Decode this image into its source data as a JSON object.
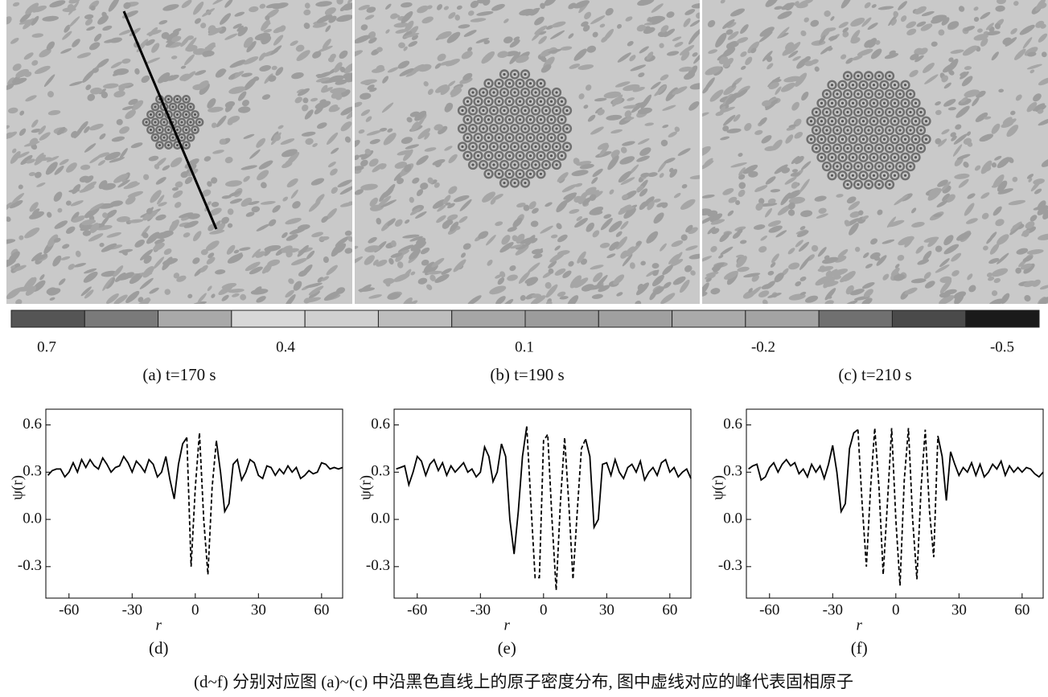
{
  "panels": [
    {
      "caption": "(a) t=170 s"
    },
    {
      "caption": "(b) t=190 s"
    },
    {
      "caption": "(c) t=210 s"
    }
  ],
  "colorbar": {
    "colors": [
      "#555555",
      "#7a7a7a",
      "#a9a9a9",
      "#d8d8d8",
      "#d0d0d0",
      "#bdbdbd",
      "#a6a6a6",
      "#9c9c9c",
      "#a0a0a0",
      "#aaaaaa",
      "#a3a3a3",
      "#707070",
      "#4a4a4a",
      "#1a1a1a"
    ],
    "ticks": [
      0.7,
      0.4,
      0.1,
      -0.2,
      -0.5
    ]
  },
  "chart_data": [
    {
      "type": "line",
      "caption": "(d)",
      "xlabel": "r",
      "ylabel": "ψ(r)",
      "xlim": [
        -71,
        70
      ],
      "ylim": [
        -0.5,
        0.7
      ],
      "xticks": [
        -60,
        -30,
        0,
        30,
        60
      ],
      "yticks": [
        0.6,
        0.3,
        {
          "value": 0,
          "label": "0.0"
        },
        -0.3
      ],
      "x": [
        -70,
        -68,
        -66,
        -64,
        -62,
        -60,
        -58,
        -56,
        -54,
        -52,
        -50,
        -48,
        -46,
        -44,
        -42,
        -40,
        -38,
        -36,
        -34,
        -32,
        -30,
        -28,
        -26,
        -24,
        -22,
        -20,
        -18,
        -16,
        -14,
        -12,
        -10,
        -8,
        -6,
        -4,
        -2,
        0,
        2,
        4,
        6,
        8,
        10,
        12,
        14,
        16,
        18,
        20,
        22,
        24,
        26,
        28,
        30,
        32,
        34,
        36,
        38,
        40,
        42,
        44,
        46,
        48,
        50,
        52,
        54,
        56,
        58,
        60,
        62,
        64,
        66,
        68,
        70
      ],
      "series": [
        {
          "style": "solid",
          "color": "#000000",
          "values": [
            0.28,
            0.31,
            0.32,
            0.32,
            0.27,
            0.3,
            0.36,
            0.3,
            0.38,
            0.33,
            0.38,
            0.34,
            0.32,
            0.39,
            0.35,
            0.3,
            0.33,
            0.34,
            0.4,
            0.36,
            0.3,
            0.37,
            0.34,
            0.3,
            0.38,
            0.35,
            0.27,
            0.3,
            0.4,
            0.25,
            0.13,
            0.35,
            0.48,
            0.52,
            null,
            null,
            null,
            null,
            null,
            null,
            0.5,
            0.3,
            0.05,
            0.1,
            0.35,
            0.38,
            0.25,
            0.3,
            0.38,
            0.36,
            0.28,
            0.26,
            0.34,
            0.33,
            0.28,
            0.32,
            0.29,
            0.34,
            0.3,
            0.33,
            0.26,
            0.28,
            0.31,
            0.29,
            0.3,
            0.36,
            0.35,
            0.32,
            0.33,
            0.32,
            0.33
          ]
        },
        {
          "style": "dashed",
          "color": "#000000",
          "values": [
            null,
            null,
            null,
            null,
            null,
            null,
            null,
            null,
            null,
            null,
            null,
            null,
            null,
            null,
            null,
            null,
            null,
            null,
            null,
            null,
            null,
            null,
            null,
            null,
            null,
            null,
            null,
            null,
            null,
            null,
            null,
            null,
            null,
            0.52,
            -0.3,
            0.2,
            0.55,
            0.0,
            -0.35,
            0.2,
            0.5,
            null,
            null,
            null,
            null,
            null,
            null,
            null,
            null,
            null,
            null,
            null,
            null,
            null,
            null,
            null,
            null,
            null,
            null,
            null,
            null,
            null,
            null,
            null,
            null,
            null,
            null,
            null,
            null,
            null,
            null
          ]
        }
      ]
    },
    {
      "type": "line",
      "caption": "(e)",
      "xlabel": "r",
      "ylabel": "ψ(r)",
      "xlim": [
        -71,
        70
      ],
      "ylim": [
        -0.5,
        0.7
      ],
      "xticks": [
        -60,
        -30,
        0,
        30,
        60
      ],
      "yticks": [
        0.6,
        0.3,
        {
          "value": 0,
          "label": "0.0"
        },
        -0.3
      ],
      "x": [
        -70,
        -68,
        -66,
        -64,
        -62,
        -60,
        -58,
        -56,
        -54,
        -52,
        -50,
        -48,
        -46,
        -44,
        -42,
        -40,
        -38,
        -36,
        -34,
        -32,
        -30,
        -28,
        -26,
        -24,
        -22,
        -20,
        -18,
        -16,
        -14,
        -12,
        -10,
        -8,
        -6,
        -4,
        -2,
        0,
        2,
        4,
        6,
        8,
        10,
        12,
        14,
        16,
        18,
        20,
        22,
        24,
        26,
        28,
        30,
        32,
        34,
        36,
        38,
        40,
        42,
        44,
        46,
        48,
        50,
        52,
        54,
        56,
        58,
        60,
        62,
        64,
        66,
        68,
        70
      ],
      "series": [
        {
          "style": "solid",
          "color": "#000000",
          "values": [
            0.32,
            0.33,
            0.34,
            0.22,
            0.3,
            0.4,
            0.37,
            0.28,
            0.35,
            0.38,
            0.31,
            0.36,
            0.28,
            0.34,
            0.3,
            0.33,
            0.36,
            0.3,
            0.32,
            0.27,
            0.3,
            0.46,
            0.4,
            0.24,
            0.3,
            0.48,
            0.4,
            0.0,
            -0.22,
            0.05,
            0.4,
            0.59,
            null,
            null,
            null,
            null,
            null,
            null,
            null,
            null,
            null,
            null,
            null,
            null,
            null,
            0.51,
            0.4,
            -0.05,
            0.0,
            0.35,
            0.36,
            0.28,
            0.38,
            0.3,
            0.26,
            0.33,
            0.35,
            0.3,
            0.37,
            0.25,
            0.3,
            0.33,
            0.28,
            0.36,
            0.38,
            0.3,
            0.33,
            0.27,
            0.3,
            0.32,
            0.26
          ]
        },
        {
          "style": "dashed",
          "color": "#000000",
          "values": [
            null,
            null,
            null,
            null,
            null,
            null,
            null,
            null,
            null,
            null,
            null,
            null,
            null,
            null,
            null,
            null,
            null,
            null,
            null,
            null,
            null,
            null,
            null,
            null,
            null,
            null,
            null,
            null,
            null,
            null,
            null,
            0.59,
            0.1,
            -0.37,
            -0.37,
            0.5,
            0.54,
            0.0,
            -0.45,
            0.1,
            0.52,
            0.1,
            -0.38,
            0.05,
            0.45,
            0.51,
            null,
            null,
            null,
            null,
            null,
            null,
            null,
            null,
            null,
            null,
            null,
            null,
            null,
            null,
            null,
            null,
            null,
            null,
            null,
            null,
            null,
            null,
            null,
            null,
            null
          ]
        }
      ]
    },
    {
      "type": "line",
      "caption": "(f)",
      "xlabel": "r",
      "ylabel": "ψ(r)",
      "xlim": [
        -71,
        70
      ],
      "ylim": [
        -0.5,
        0.7
      ],
      "xticks": [
        -60,
        -30,
        0,
        30,
        60
      ],
      "yticks": [
        0.6,
        0.3,
        {
          "value": 0,
          "label": "0.0"
        },
        -0.3
      ],
      "x": [
        -70,
        -68,
        -66,
        -64,
        -62,
        -60,
        -58,
        -56,
        -54,
        -52,
        -50,
        -48,
        -46,
        -44,
        -42,
        -40,
        -38,
        -36,
        -34,
        -32,
        -30,
        -28,
        -26,
        -24,
        -22,
        -20,
        -18,
        -16,
        -14,
        -12,
        -10,
        -8,
        -6,
        -4,
        -2,
        0,
        2,
        4,
        6,
        8,
        10,
        12,
        14,
        16,
        18,
        20,
        22,
        24,
        26,
        28,
        30,
        32,
        34,
        36,
        38,
        40,
        42,
        44,
        46,
        48,
        50,
        52,
        54,
        56,
        58,
        60,
        62,
        64,
        66,
        68,
        70
      ],
      "series": [
        {
          "style": "solid",
          "color": "#000000",
          "values": [
            0.32,
            0.34,
            0.35,
            0.25,
            0.27,
            0.33,
            0.36,
            0.3,
            0.35,
            0.38,
            0.34,
            0.36,
            0.29,
            0.32,
            0.27,
            0.35,
            0.3,
            0.34,
            0.26,
            0.35,
            0.47,
            0.3,
            0.05,
            0.1,
            0.45,
            0.55,
            0.57,
            null,
            null,
            null,
            null,
            null,
            null,
            null,
            null,
            null,
            null,
            null,
            null,
            null,
            null,
            null,
            null,
            null,
            null,
            0.53,
            0.4,
            0.12,
            0.43,
            0.35,
            0.28,
            0.33,
            0.3,
            0.36,
            0.28,
            0.35,
            0.27,
            0.3,
            0.35,
            0.32,
            0.37,
            0.28,
            0.34,
            0.3,
            0.33,
            0.3,
            0.33,
            0.32,
            0.29,
            0.27,
            0.3
          ]
        },
        {
          "style": "dashed",
          "color": "#000000",
          "values": [
            null,
            null,
            null,
            null,
            null,
            null,
            null,
            null,
            null,
            null,
            null,
            null,
            null,
            null,
            null,
            null,
            null,
            null,
            null,
            null,
            null,
            null,
            null,
            null,
            null,
            null,
            0.57,
            0.1,
            -0.3,
            0.2,
            0.58,
            0.2,
            -0.35,
            0.1,
            0.58,
            0.0,
            -0.42,
            0.25,
            0.58,
            0.0,
            -0.38,
            0.2,
            0.57,
            0.05,
            -0.24,
            0.53,
            null,
            null,
            null,
            null,
            null,
            null,
            null,
            null,
            null,
            null,
            null,
            null,
            null,
            null,
            null,
            null,
            null,
            null,
            null,
            null,
            null,
            null,
            null,
            null,
            null
          ]
        }
      ]
    }
  ],
  "caption": "(d~f) 分别对应图 (a)~(c) 中沿黑色直线上的原子密度分布, 图中虚线对应的峰代表固相原子"
}
